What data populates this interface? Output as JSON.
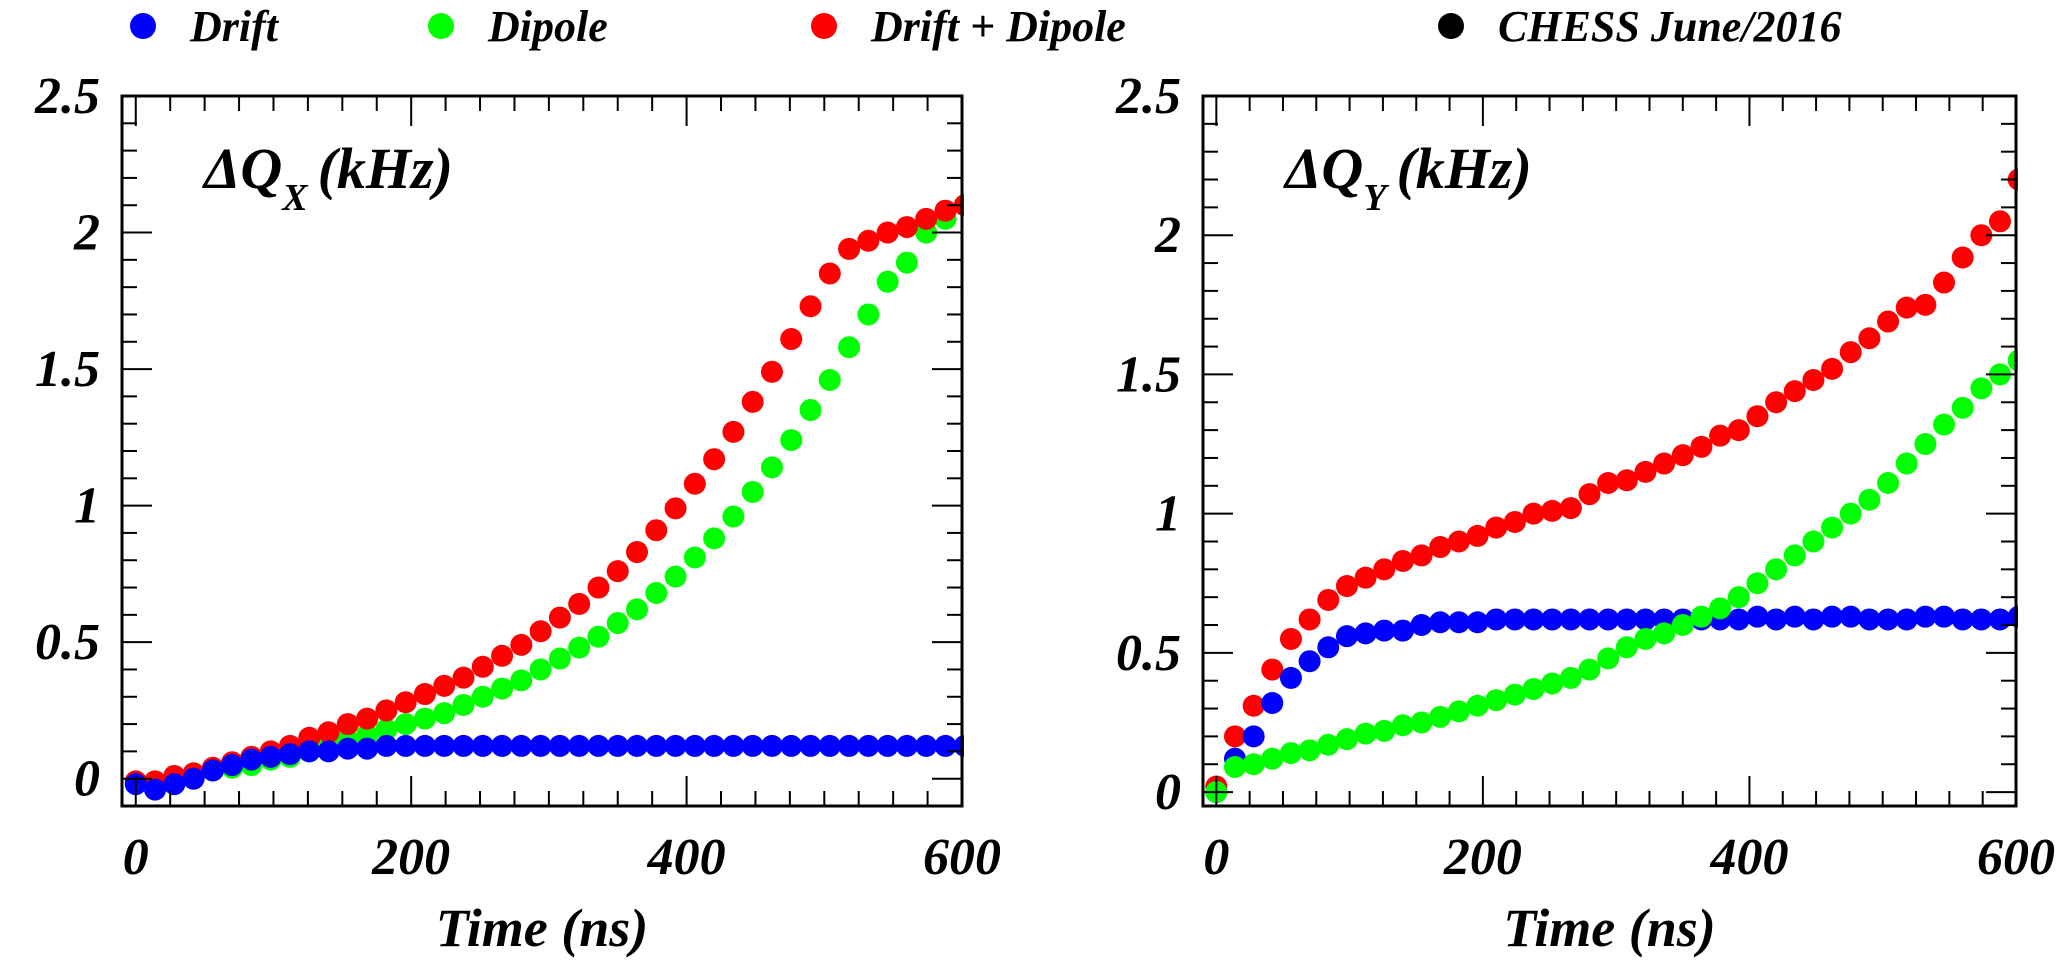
{
  "legend": {
    "items": [
      {
        "label": "Drift",
        "color": "#0000ff"
      },
      {
        "label": "Dipole",
        "color": "#00ff00"
      },
      {
        "label": "Drift + Dipole",
        "color": "#ff0000"
      },
      {
        "label": "CHESS June/2016",
        "color": "#000000"
      }
    ]
  },
  "chart_data": [
    {
      "type": "scatter",
      "title": "ΔQ",
      "title_subscript": "X",
      "title_unit": "(kHz)",
      "xlabel": "Time (ns)",
      "ylabel": "",
      "xlim": [
        -10,
        600
      ],
      "ylim": [
        -0.1,
        2.5
      ],
      "x_ticks": [
        "0",
        "200",
        "400",
        "600"
      ],
      "y_ticks": [
        "0",
        "0.5",
        "1",
        "1.5",
        "2",
        "2.5"
      ],
      "x_tick_values": [
        0,
        200,
        400,
        600
      ],
      "y_tick_values": [
        0,
        0.5,
        1,
        1.5,
        2,
        2.5
      ],
      "x": [
        0,
        14,
        28,
        42,
        56,
        70,
        84,
        98,
        112,
        126,
        140,
        154,
        168,
        182,
        196,
        210,
        224,
        238,
        252,
        266,
        280,
        294,
        308,
        322,
        336,
        350,
        364,
        378,
        392,
        406,
        420,
        434,
        448,
        462,
        476,
        490,
        504,
        518,
        532,
        546,
        560,
        574,
        588,
        602
      ],
      "series": [
        {
          "name": "Dipole",
          "color": "#00ff00",
          "values": [
            -0.01,
            -0.01,
            0.0,
            0.01,
            0.03,
            0.04,
            0.05,
            0.07,
            0.08,
            0.1,
            0.12,
            0.14,
            0.16,
            0.18,
            0.2,
            0.22,
            0.24,
            0.27,
            0.3,
            0.33,
            0.36,
            0.4,
            0.44,
            0.48,
            0.52,
            0.57,
            0.62,
            0.68,
            0.74,
            0.81,
            0.88,
            0.96,
            1.05,
            1.14,
            1.24,
            1.35,
            1.46,
            1.58,
            1.7,
            1.82,
            1.89,
            2.0,
            2.05,
            2.1
          ]
        },
        {
          "name": "Drift + Dipole",
          "color": "#ff0000",
          "values": [
            -0.01,
            -0.01,
            0.01,
            0.02,
            0.04,
            0.06,
            0.08,
            0.1,
            0.12,
            0.15,
            0.17,
            0.2,
            0.22,
            0.25,
            0.28,
            0.31,
            0.34,
            0.37,
            0.41,
            0.45,
            0.49,
            0.54,
            0.59,
            0.64,
            0.7,
            0.76,
            0.83,
            0.91,
            0.99,
            1.08,
            1.17,
            1.27,
            1.38,
            1.49,
            1.61,
            1.73,
            1.85,
            1.94,
            1.97,
            2.0,
            2.02,
            2.05,
            2.08,
            2.1
          ]
        },
        {
          "name": "Drift",
          "color": "#0000ff",
          "values": [
            -0.02,
            -0.04,
            -0.02,
            0.0,
            0.03,
            0.05,
            0.07,
            0.08,
            0.09,
            0.1,
            0.1,
            0.11,
            0.11,
            0.12,
            0.12,
            0.12,
            0.12,
            0.12,
            0.12,
            0.12,
            0.12,
            0.12,
            0.12,
            0.12,
            0.12,
            0.12,
            0.12,
            0.12,
            0.12,
            0.12,
            0.12,
            0.12,
            0.12,
            0.12,
            0.12,
            0.12,
            0.12,
            0.12,
            0.12,
            0.12,
            0.12,
            0.12,
            0.12,
            0.12
          ]
        }
      ]
    },
    {
      "type": "scatter",
      "title": "ΔQ",
      "title_subscript": "Y",
      "title_unit": "(kHz)",
      "xlabel": "Time (ns)",
      "ylabel": "",
      "xlim": [
        -10,
        600
      ],
      "ylim": [
        -0.05,
        2.5
      ],
      "x_ticks": [
        "0",
        "200",
        "400",
        "600"
      ],
      "y_ticks": [
        "0",
        "0.5",
        "1",
        "1.5",
        "2",
        "2.5"
      ],
      "x_tick_values": [
        0,
        200,
        400,
        600
      ],
      "y_tick_values": [
        0,
        0.5,
        1,
        1.5,
        2,
        2.5
      ],
      "x": [
        0,
        14,
        28,
        42,
        56,
        70,
        84,
        98,
        112,
        126,
        140,
        154,
        168,
        182,
        196,
        210,
        224,
        238,
        252,
        266,
        280,
        294,
        308,
        322,
        336,
        350,
        364,
        378,
        392,
        406,
        420,
        434,
        448,
        462,
        476,
        490,
        504,
        518,
        532,
        546,
        560,
        574,
        588,
        602
      ],
      "series": [
        {
          "name": "Drift + Dipole",
          "color": "#ff0000",
          "values": [
            0.02,
            0.2,
            0.31,
            0.44,
            0.55,
            0.62,
            0.69,
            0.74,
            0.77,
            0.8,
            0.83,
            0.85,
            0.88,
            0.9,
            0.92,
            0.95,
            0.97,
            1.0,
            1.01,
            1.02,
            1.07,
            1.11,
            1.12,
            1.15,
            1.18,
            1.21,
            1.24,
            1.28,
            1.3,
            1.35,
            1.4,
            1.44,
            1.48,
            1.52,
            1.58,
            1.63,
            1.69,
            1.74,
            1.75,
            1.83,
            1.92,
            2.0,
            2.05,
            2.2
          ]
        },
        {
          "name": "Drift",
          "color": "#0000ff",
          "values": [
            0.0,
            0.12,
            0.2,
            0.32,
            0.41,
            0.47,
            0.52,
            0.56,
            0.57,
            0.58,
            0.58,
            0.6,
            0.61,
            0.61,
            0.61,
            0.62,
            0.62,
            0.62,
            0.62,
            0.62,
            0.62,
            0.62,
            0.62,
            0.62,
            0.62,
            0.62,
            0.62,
            0.62,
            0.62,
            0.63,
            0.62,
            0.63,
            0.62,
            0.63,
            0.63,
            0.62,
            0.62,
            0.62,
            0.63,
            0.63,
            0.62,
            0.62,
            0.62,
            0.63
          ]
        },
        {
          "name": "Dipole",
          "color": "#00ff00",
          "values": [
            0.0,
            0.09,
            0.1,
            0.12,
            0.14,
            0.15,
            0.17,
            0.19,
            0.21,
            0.22,
            0.24,
            0.25,
            0.27,
            0.29,
            0.31,
            0.33,
            0.35,
            0.37,
            0.39,
            0.41,
            0.44,
            0.48,
            0.52,
            0.55,
            0.57,
            0.6,
            0.63,
            0.66,
            0.7,
            0.75,
            0.8,
            0.85,
            0.9,
            0.95,
            1.0,
            1.05,
            1.11,
            1.18,
            1.25,
            1.32,
            1.38,
            1.45,
            1.5,
            1.55
          ]
        }
      ]
    }
  ]
}
